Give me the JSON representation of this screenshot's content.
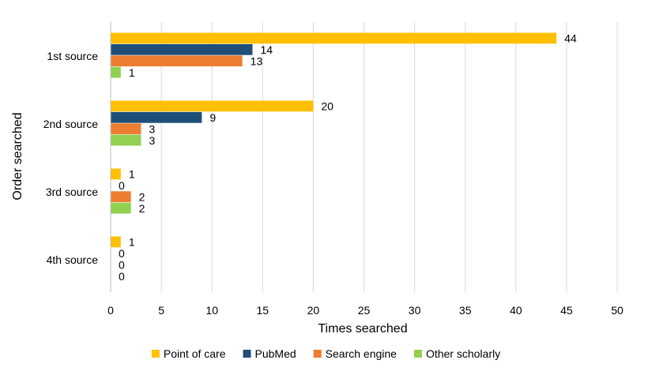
{
  "chart_data": {
    "type": "bar",
    "orientation": "horizontal",
    "categories": [
      "1st source",
      "2nd source",
      "3rd source",
      "4th source"
    ],
    "series": [
      {
        "name": "Point of care",
        "color": "#FFC000",
        "values": [
          44,
          20,
          1,
          1
        ]
      },
      {
        "name": "PubMed",
        "color": "#1F4E79",
        "values": [
          14,
          9,
          0,
          0
        ]
      },
      {
        "name": "Search engine",
        "color": "#ED7D31",
        "values": [
          13,
          3,
          2,
          0
        ]
      },
      {
        "name": "Other scholarly",
        "color": "#92D050",
        "values": [
          1,
          3,
          2,
          0
        ]
      }
    ],
    "xlabel": "Times searched",
    "ylabel": "Order searched",
    "xlim": [
      0,
      50
    ],
    "xticks": [
      "0",
      "5",
      "10",
      "15",
      "20",
      "25",
      "30",
      "35",
      "40",
      "45",
      "50"
    ],
    "grid": "vertical",
    "legend": "bottom",
    "data_labels": true
  }
}
